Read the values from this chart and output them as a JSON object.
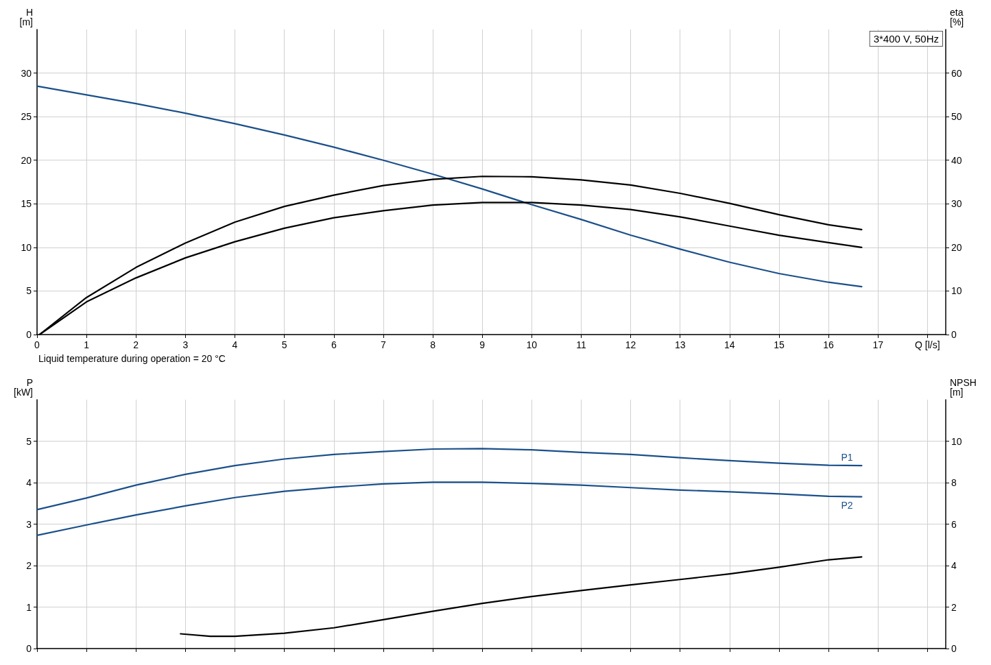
{
  "chart_data": [
    {
      "type": "line",
      "xlabel": "Q [l/s]",
      "ylabel": "H [m]",
      "y2label": "eta [%]",
      "xlim": [
        0,
        18.37
      ],
      "xticks": [
        0,
        1,
        2,
        3,
        4,
        5,
        6,
        7,
        8,
        9,
        10,
        11,
        12,
        13,
        14,
        15,
        16,
        17,
        {
          "value": 18,
          "label": null
        }
      ],
      "ylim": [
        0,
        35
      ],
      "yticks": [
        0,
        5,
        10,
        15,
        20,
        25,
        30
      ],
      "y2lim": [
        0,
        70
      ],
      "y2ticks": [
        0,
        10,
        20,
        30,
        40,
        50,
        60
      ],
      "grid": true,
      "annotations": [
        "3*400 V, 50Hz",
        "Liquid temperature during operation = 20 °C"
      ],
      "series": [
        {
          "color": "#1a4f8a",
          "x": [
            0,
            1,
            2,
            3,
            4,
            5,
            6,
            7,
            8,
            9,
            10,
            11,
            12,
            13,
            14,
            15,
            16,
            16.67
          ],
          "values": [
            28.5,
            27.5,
            26.5,
            25.4,
            24.2,
            22.9,
            21.5,
            20.0,
            18.4,
            16.7,
            14.9,
            13.2,
            11.4,
            9.8,
            8.3,
            7.0,
            6.0,
            5.5
          ]
        },
        {
          "color": "#000000",
          "axis": "y2",
          "x": [
            0.05,
            1,
            2,
            3,
            4,
            5,
            6,
            7,
            8,
            9,
            10,
            11,
            12,
            13,
            14,
            15,
            16,
            16.67
          ],
          "values": [
            0,
            8.5,
            15.4,
            21.0,
            25.8,
            29.4,
            32.0,
            34.2,
            35.6,
            36.3,
            36.2,
            35.5,
            34.3,
            32.4,
            30.1,
            27.5,
            25.2,
            24.1
          ]
        },
        {
          "color": "#000000",
          "axis": "y2",
          "x": [
            0.05,
            1,
            2,
            3,
            4,
            5,
            6,
            7,
            8,
            9,
            10,
            11,
            12,
            13,
            14,
            15,
            16,
            16.67
          ],
          "values": [
            0,
            7.5,
            13.0,
            17.6,
            21.3,
            24.4,
            26.8,
            28.4,
            29.7,
            30.3,
            30.3,
            29.7,
            28.7,
            27.0,
            24.9,
            22.8,
            21.1,
            20.0
          ]
        }
      ]
    },
    {
      "type": "line",
      "ylabel": "P [kW]",
      "y2label": "NPSH [m]",
      "xlim": [
        0,
        18.37
      ],
      "xticks": [
        0,
        1,
        2,
        3,
        4,
        5,
        6,
        7,
        8,
        9,
        10,
        11,
        12,
        13,
        14,
        15,
        16,
        17,
        18
      ],
      "ylim": [
        0,
        6
      ],
      "yticks": [
        0,
        1,
        2,
        3,
        4,
        5
      ],
      "y2lim": [
        0,
        12
      ],
      "y2ticks": [
        0,
        2,
        4,
        6,
        8,
        10
      ],
      "grid": true,
      "tick_labels": "y",
      "series": [
        {
          "name": "P1",
          "color": "#1a4f8a",
          "x": [
            0,
            1,
            2,
            3,
            4,
            5,
            6,
            7,
            8,
            9,
            10,
            11,
            12,
            13,
            14,
            15,
            16,
            16.67
          ],
          "values": [
            3.35,
            3.63,
            3.94,
            4.2,
            4.41,
            4.57,
            4.68,
            4.75,
            4.81,
            4.82,
            4.79,
            4.73,
            4.68,
            4.6,
            4.53,
            4.47,
            4.42,
            4.41
          ]
        },
        {
          "name": "P2",
          "color": "#1a4f8a",
          "x": [
            0,
            1,
            2,
            3,
            4,
            5,
            6,
            7,
            8,
            9,
            10,
            11,
            12,
            13,
            14,
            15,
            16,
            16.67
          ],
          "values": [
            2.73,
            2.98,
            3.22,
            3.44,
            3.64,
            3.79,
            3.89,
            3.97,
            4.01,
            4.01,
            3.98,
            3.94,
            3.88,
            3.82,
            3.78,
            3.73,
            3.67,
            3.66
          ]
        },
        {
          "color": "#000000",
          "axis": "y2",
          "x": [
            2.9,
            3.5,
            4,
            5,
            6,
            7,
            8,
            9,
            10,
            11,
            12,
            13,
            14,
            15,
            16,
            16.67
          ],
          "values": [
            0.71,
            0.59,
            0.59,
            0.74,
            1.0,
            1.39,
            1.8,
            2.18,
            2.51,
            2.8,
            3.07,
            3.33,
            3.6,
            3.92,
            4.28,
            4.42
          ]
        }
      ]
    }
  ]
}
